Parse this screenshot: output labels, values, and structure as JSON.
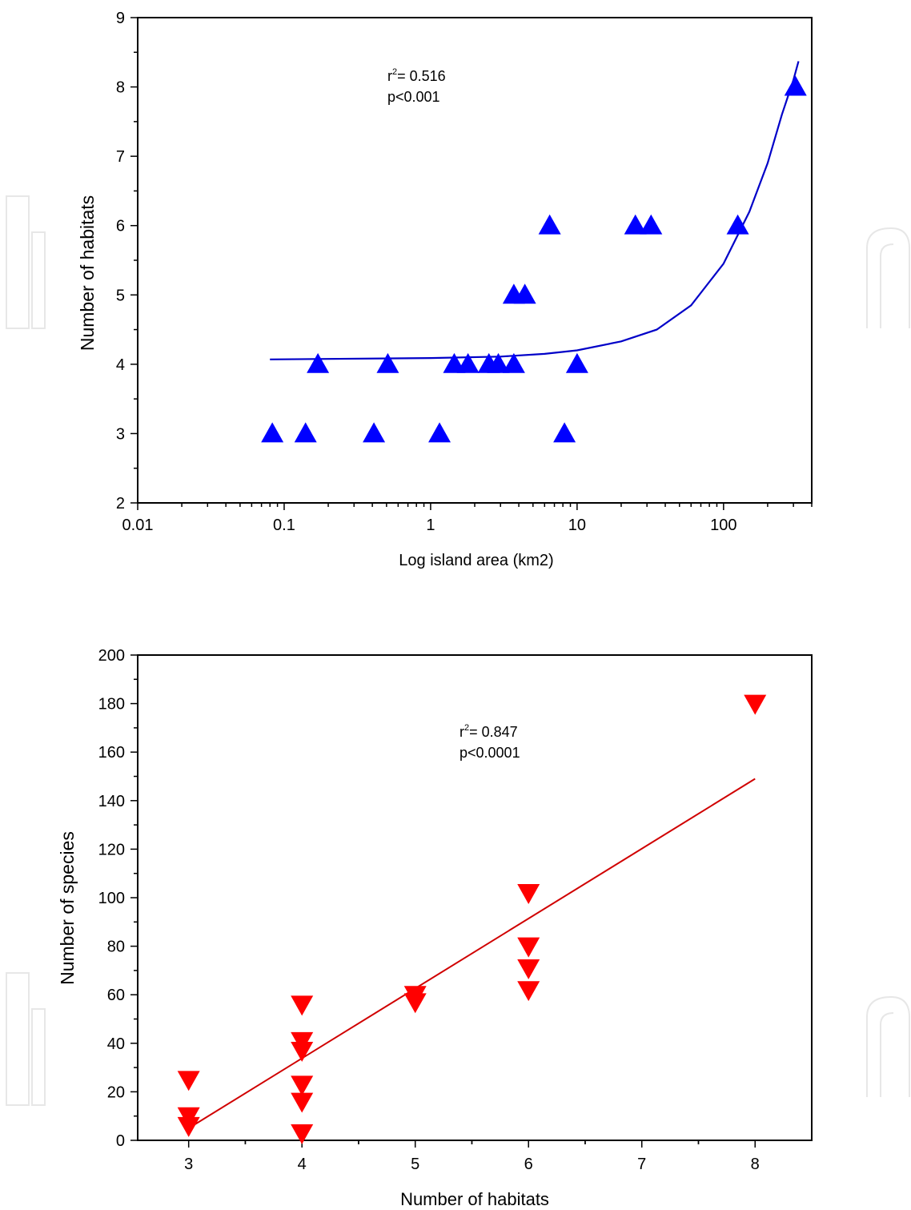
{
  "chart_data": [
    {
      "type": "scatter",
      "xscale": "log",
      "xlabel": "Log island area (km2)",
      "ylabel": "Number of habitats",
      "xlim": [
        0.01,
        400
      ],
      "ylim": [
        2,
        9
      ],
      "xticks": [
        "0.01",
        "0.1",
        "1",
        "10",
        "100"
      ],
      "yticks": [
        "2",
        "3",
        "4",
        "5",
        "6",
        "7",
        "8",
        "9"
      ],
      "annotation": {
        "r2": "= 0.516",
        "p": "p<0.001"
      },
      "marker": "triangle-up",
      "color": "#0000ff",
      "series": [
        {
          "points": [
            [
              0.083,
              3
            ],
            [
              0.14,
              3
            ],
            [
              0.41,
              3
            ],
            [
              1.15,
              3
            ],
            [
              8.2,
              3
            ],
            [
              0.17,
              4
            ],
            [
              0.51,
              4
            ],
            [
              1.45,
              4
            ],
            [
              1.8,
              4
            ],
            [
              2.5,
              4
            ],
            [
              2.9,
              4
            ],
            [
              3.7,
              4
            ],
            [
              10,
              4
            ],
            [
              3.7,
              5
            ],
            [
              4.4,
              5
            ],
            [
              6.5,
              6
            ],
            [
              25,
              6
            ],
            [
              32,
              6
            ],
            [
              125,
              6
            ],
            [
              310,
              8
            ]
          ]
        }
      ],
      "fit": {
        "type": "exponential",
        "points": [
          [
            0.08,
            4.07
          ],
          [
            1,
            4.09
          ],
          [
            3,
            4.11
          ],
          [
            6,
            4.15
          ],
          [
            10,
            4.2
          ],
          [
            20,
            4.33
          ],
          [
            35,
            4.5
          ],
          [
            60,
            4.85
          ],
          [
            100,
            5.45
          ],
          [
            150,
            6.2
          ],
          [
            200,
            6.9
          ],
          [
            250,
            7.6
          ],
          [
            300,
            8.1
          ],
          [
            325,
            8.37
          ]
        ]
      }
    },
    {
      "type": "scatter",
      "xlabel": "Number of habitats",
      "ylabel": "Number of species",
      "xlim": [
        2.55,
        8.5
      ],
      "ylim": [
        0,
        200
      ],
      "xticks": [
        "3",
        "4",
        "5",
        "6",
        "7",
        "8"
      ],
      "yticks": [
        "0",
        "20",
        "40",
        "60",
        "80",
        "100",
        "120",
        "140",
        "160",
        "180",
        "200"
      ],
      "annotation": {
        "r2": "= 0.847",
        "p": "p<0.0001"
      },
      "marker": "triangle-down",
      "color": "#ff0000",
      "series": [
        {
          "points": [
            [
              3,
              25
            ],
            [
              3,
              10
            ],
            [
              3,
              6
            ],
            [
              4,
              56
            ],
            [
              4,
              41
            ],
            [
              4,
              37
            ],
            [
              4,
              23
            ],
            [
              4,
              16
            ],
            [
              4,
              3
            ],
            [
              5,
              60
            ],
            [
              5,
              57
            ],
            [
              6,
              102
            ],
            [
              6,
              80
            ],
            [
              6,
              71
            ],
            [
              6,
              62
            ],
            [
              8,
              180
            ]
          ]
        }
      ],
      "fit": {
        "type": "linear",
        "points": [
          [
            3,
            5
          ],
          [
            8,
            149
          ]
        ]
      }
    }
  ]
}
